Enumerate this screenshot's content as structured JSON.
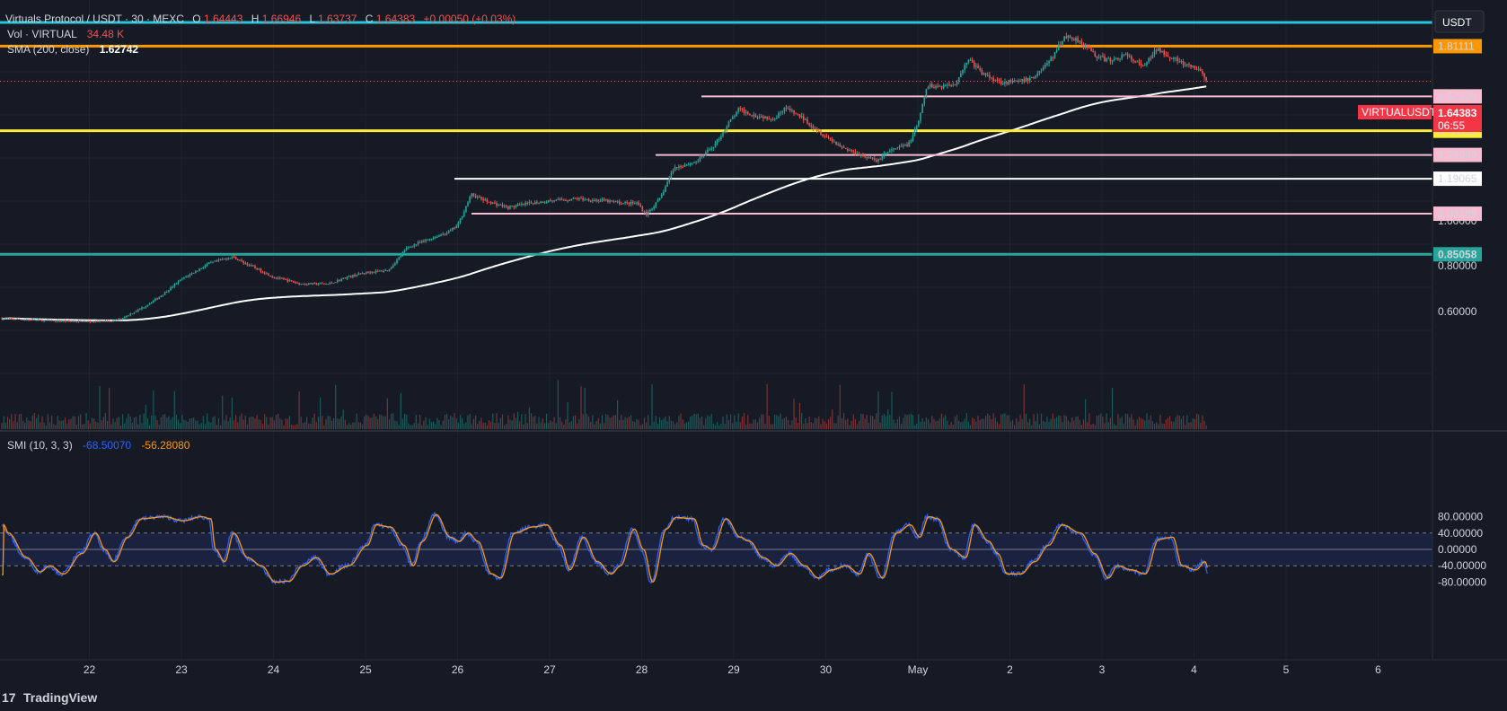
{
  "header": {
    "symbol": "Virtuals Protocol / USDT · 30 · MEXC",
    "open_label": "O",
    "open": "1.64443",
    "high_label": "H",
    "high": "1.66946",
    "low_label": "L",
    "low": "1.63737",
    "close_label": "C",
    "close": "1.64383",
    "change": "+0.00050 (+0.03%)",
    "vol_label": "Vol · VIRTUAL",
    "vol_value": "34.48 K",
    "sma_label": "SMA (200, close)",
    "sma_value": "1.62742",
    "smi_label": "SMI (10, 3, 3)",
    "smi_value1": "-68.50070",
    "smi_value2": "-56.28080"
  },
  "currency_button": "USDT",
  "footer": {
    "brand": "TradingView",
    "logo_text": "17"
  },
  "colors": {
    "bg": "#161a25",
    "up": "#26a69a",
    "down": "#ef5350",
    "cyan": "#26c6da",
    "orange": "#ff9800",
    "yellow": "#ffeb3b",
    "pink": "#f8bbd0",
    "white": "#ffffff",
    "teal": "#26a69a",
    "smi_blue": "#2962ff",
    "smi_orange": "#ff9800",
    "smi_band": "#1b2240"
  },
  "chart_data": {
    "type": "candlestick",
    "timeframe": "30",
    "x_ticks": [
      "22",
      "23",
      "24",
      "25",
      "26",
      "27",
      "28",
      "29",
      "30",
      "May",
      "2",
      "3",
      "4",
      "5",
      "6"
    ],
    "price_axis_ticks": [
      "0.60000",
      "0.80000",
      "1.00000"
    ],
    "horizontal_levels": [
      {
        "value": 1.81111,
        "label": "1.81111",
        "color": "orange"
      },
      {
        "value": 1.57229,
        "label": "1.57229",
        "color": "pink"
      },
      {
        "value": 1.41132,
        "label": "1.41132",
        "color": "yellow"
      },
      {
        "value": 1.29969,
        "label": "1.29969",
        "color": "pink"
      },
      {
        "value": 1.19065,
        "label": "1.19065",
        "color": "white"
      },
      {
        "value": 1.03208,
        "label": "1.03208",
        "color": "pink"
      },
      {
        "value": 0.85058,
        "label": "0.85058",
        "color": "teal"
      }
    ],
    "current_price": {
      "symbol": "VIRTUALUSDT",
      "value": "1.64383",
      "countdown": "06:55"
    },
    "price_path": [
      [
        21.05,
        0.57
      ],
      [
        21.5,
        0.56
      ],
      [
        22.0,
        0.555
      ],
      [
        22.3,
        0.56
      ],
      [
        22.55,
        0.61
      ],
      [
        22.75,
        0.66
      ],
      [
        23.0,
        0.74
      ],
      [
        23.3,
        0.81
      ],
      [
        23.55,
        0.84
      ],
      [
        23.8,
        0.79
      ],
      [
        24.0,
        0.75
      ],
      [
        24.3,
        0.72
      ],
      [
        24.6,
        0.72
      ],
      [
        24.8,
        0.75
      ],
      [
        25.0,
        0.77
      ],
      [
        25.25,
        0.78
      ],
      [
        25.45,
        0.88
      ],
      [
        25.7,
        0.92
      ],
      [
        25.9,
        0.95
      ],
      [
        26.0,
        0.98
      ],
      [
        26.15,
        1.12
      ],
      [
        26.3,
        1.09
      ],
      [
        26.55,
        1.06
      ],
      [
        26.8,
        1.08
      ],
      [
        27.0,
        1.09
      ],
      [
        27.3,
        1.1
      ],
      [
        27.6,
        1.09
      ],
      [
        27.8,
        1.08
      ],
      [
        27.95,
        1.08
      ],
      [
        28.05,
        1.03
      ],
      [
        28.2,
        1.1
      ],
      [
        28.35,
        1.24
      ],
      [
        28.6,
        1.27
      ],
      [
        28.8,
        1.35
      ],
      [
        28.95,
        1.45
      ],
      [
        29.05,
        1.51
      ],
      [
        29.25,
        1.48
      ],
      [
        29.45,
        1.47
      ],
      [
        29.55,
        1.52
      ],
      [
        29.75,
        1.47
      ],
      [
        29.95,
        1.4
      ],
      [
        30.2,
        1.33
      ],
      [
        30.45,
        1.29
      ],
      [
        30.55,
        1.27
      ],
      [
        30.65,
        1.31
      ],
      [
        30.9,
        1.35
      ],
      [
        31.0,
        1.44
      ],
      [
        31.1,
        1.62
      ],
      [
        31.25,
        1.62
      ],
      [
        31.4,
        1.63
      ],
      [
        31.55,
        1.75
      ],
      [
        31.7,
        1.68
      ],
      [
        31.9,
        1.64
      ],
      [
        32.1,
        1.64
      ],
      [
        32.25,
        1.66
      ],
      [
        32.45,
        1.75
      ],
      [
        32.6,
        1.86
      ],
      [
        32.75,
        1.84
      ],
      [
        32.95,
        1.76
      ],
      [
        33.1,
        1.74
      ],
      [
        33.25,
        1.77
      ],
      [
        33.45,
        1.71
      ],
      [
        33.6,
        1.8
      ],
      [
        33.75,
        1.76
      ],
      [
        33.9,
        1.72
      ],
      [
        34.05,
        1.7
      ],
      [
        34.15,
        1.64383
      ]
    ],
    "smi": {
      "range": [
        -100,
        100
      ],
      "levels": [
        -40,
        0,
        40
      ],
      "axis_ticks": [
        "80.00000",
        "40.00000",
        "0.00000",
        "-40.00000",
        "-80.00000"
      ],
      "path": [
        [
          21.05,
          60
        ],
        [
          21.1,
          40
        ],
        [
          21.3,
          -20
        ],
        [
          21.45,
          -55
        ],
        [
          21.55,
          -40
        ],
        [
          21.7,
          -60
        ],
        [
          21.9,
          -10
        ],
        [
          22.05,
          40
        ],
        [
          22.15,
          0
        ],
        [
          22.25,
          -30
        ],
        [
          22.4,
          30
        ],
        [
          22.55,
          75
        ],
        [
          22.8,
          80
        ],
        [
          23.0,
          70
        ],
        [
          23.2,
          80
        ],
        [
          23.3,
          75
        ],
        [
          23.35,
          0
        ],
        [
          23.45,
          -30
        ],
        [
          23.55,
          40
        ],
        [
          23.7,
          -20
        ],
        [
          23.85,
          -40
        ],
        [
          24.0,
          -80
        ],
        [
          24.15,
          -78
        ],
        [
          24.3,
          -40
        ],
        [
          24.45,
          -20
        ],
        [
          24.6,
          -60
        ],
        [
          24.8,
          -40
        ],
        [
          25.0,
          10
        ],
        [
          25.1,
          60
        ],
        [
          25.25,
          55
        ],
        [
          25.4,
          10
        ],
        [
          25.5,
          -40
        ],
        [
          25.6,
          20
        ],
        [
          25.75,
          85
        ],
        [
          25.9,
          30
        ],
        [
          26.0,
          20
        ],
        [
          26.1,
          40
        ],
        [
          26.2,
          20
        ],
        [
          26.35,
          -60
        ],
        [
          26.45,
          -70
        ],
        [
          26.6,
          40
        ],
        [
          26.8,
          55
        ],
        [
          26.95,
          60
        ],
        [
          27.1,
          10
        ],
        [
          27.2,
          -50
        ],
        [
          27.35,
          30
        ],
        [
          27.5,
          -30
        ],
        [
          27.65,
          -60
        ],
        [
          27.75,
          -40
        ],
        [
          27.9,
          50
        ],
        [
          28.0,
          0
        ],
        [
          28.1,
          -80
        ],
        [
          28.25,
          50
        ],
        [
          28.35,
          78
        ],
        [
          28.55,
          75
        ],
        [
          28.65,
          10
        ],
        [
          28.75,
          0
        ],
        [
          28.9,
          75
        ],
        [
          29.05,
          30
        ],
        [
          29.15,
          20
        ],
        [
          29.3,
          -20
        ],
        [
          29.45,
          -40
        ],
        [
          29.6,
          -10
        ],
        [
          29.75,
          -40
        ],
        [
          29.9,
          -70
        ],
        [
          30.05,
          -50
        ],
        [
          30.2,
          -40
        ],
        [
          30.35,
          -60
        ],
        [
          30.45,
          -10
        ],
        [
          30.6,
          -70
        ],
        [
          30.75,
          40
        ],
        [
          30.9,
          60
        ],
        [
          31.0,
          30
        ],
        [
          31.1,
          80
        ],
        [
          31.2,
          75
        ],
        [
          31.35,
          0
        ],
        [
          31.5,
          -20
        ],
        [
          31.6,
          60
        ],
        [
          31.75,
          20
        ],
        [
          31.85,
          -10
        ],
        [
          31.95,
          -60
        ],
        [
          32.1,
          -60
        ],
        [
          32.25,
          -30
        ],
        [
          32.4,
          10
        ],
        [
          32.55,
          60
        ],
        [
          32.75,
          40
        ],
        [
          32.9,
          -10
        ],
        [
          33.05,
          -70
        ],
        [
          33.15,
          -40
        ],
        [
          33.3,
          -50
        ],
        [
          33.45,
          -60
        ],
        [
          33.6,
          25
        ],
        [
          33.75,
          30
        ],
        [
          33.85,
          -40
        ],
        [
          34.0,
          -50
        ],
        [
          34.1,
          -30
        ],
        [
          34.15,
          -62
        ]
      ]
    }
  }
}
